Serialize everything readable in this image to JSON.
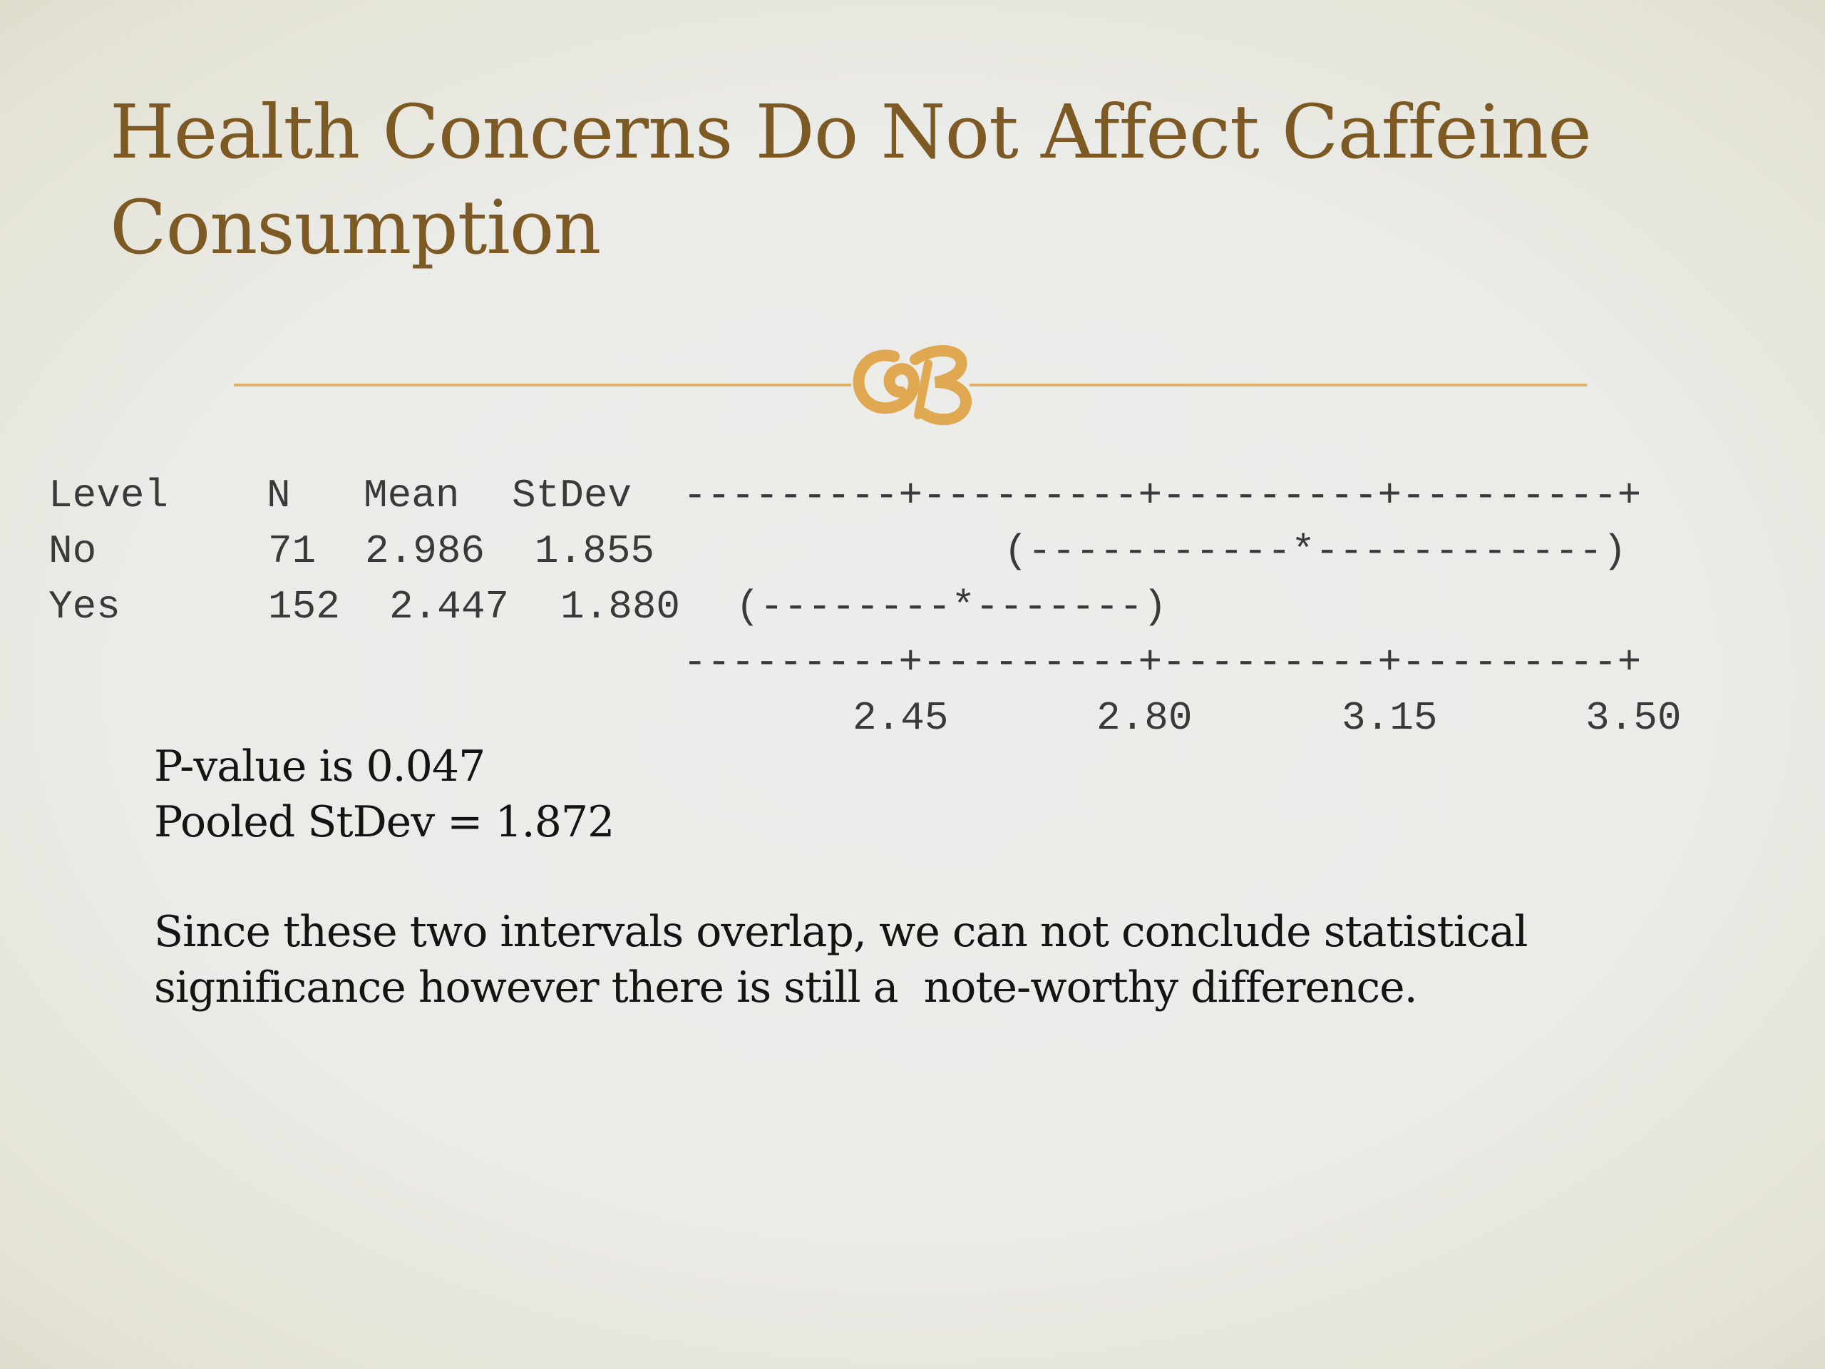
{
  "slide": {
    "title_line1": "Health Concerns Do Not Affect Caffeine",
    "title_line2": "Consumption",
    "accent_color": "#e0b066",
    "title_color": "#7d5a24"
  },
  "output": {
    "header": {
      "level": "Level",
      "n": "N",
      "mean": "Mean",
      "stdev": "StDev",
      "scale": "---------+---------+---------+---------+"
    },
    "rows": [
      {
        "level": "No",
        "n": "71",
        "mean": "2.986",
        "stdev": "1.855",
        "interval": "(-----------*------------)"
      },
      {
        "level": "Yes",
        "n": "152",
        "mean": "2.447",
        "stdev": "1.880",
        "interval": "(--------*-------)"
      }
    ],
    "footer_scale": "---------+---------+---------+---------+",
    "axis_ticks": [
      "2.45",
      "2.80",
      "3.15",
      "3.50"
    ]
  },
  "notes": {
    "pvalue": "P-value is 0.047",
    "pooled": "Pooled StDev = 1.872",
    "conclusion_line1": "Since these two intervals overlap, we can not conclude statistical",
    "conclusion_line2": "significance however there is still a  note-worthy difference."
  }
}
